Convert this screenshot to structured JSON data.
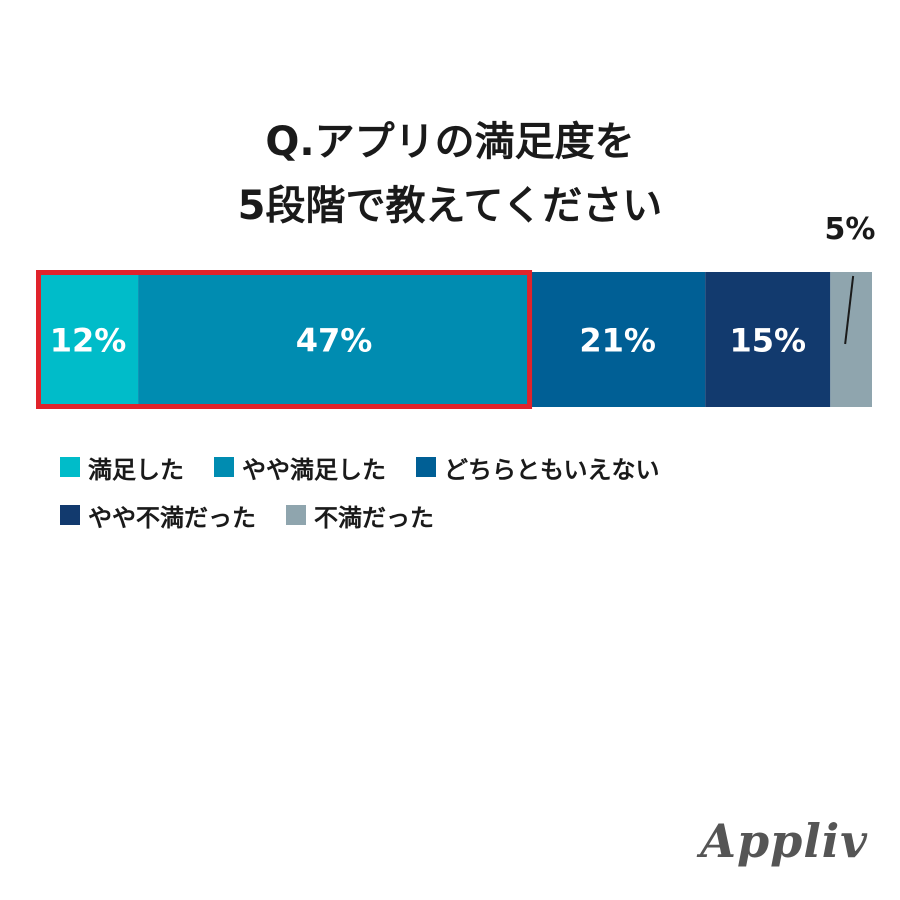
{
  "title": {
    "line1": "Q.アプリの満足度を",
    "line2": "5段階で教えてください"
  },
  "brand": "Appliv",
  "highlight_color": "#e0232b",
  "legend_rows": [
    [
      0,
      1,
      2
    ],
    [
      3,
      4
    ]
  ],
  "chart_data": {
    "type": "bar",
    "orientation": "horizontal-stacked-100",
    "title": "Q.アプリの満足度を5段階で教えてください",
    "series": [
      {
        "name": "満足した",
        "value": 12,
        "label": "12%",
        "color": "#00bcc9",
        "label_inside": true
      },
      {
        "name": "やや満足した",
        "value": 47,
        "label": "47%",
        "color": "#008cb1",
        "label_inside": true
      },
      {
        "name": "どちらともいえない",
        "value": 21,
        "label": "21%",
        "color": "#005f95",
        "label_inside": true
      },
      {
        "name": "やや不満だった",
        "value": 15,
        "label": "15%",
        "color": "#123a6e",
        "label_inside": true
      },
      {
        "name": "不満だった",
        "value": 5,
        "label": "5%",
        "color": "#8fa5ae",
        "label_inside": false
      }
    ],
    "highlighted_series": [
      0,
      1
    ],
    "legend_position": "bottom"
  }
}
